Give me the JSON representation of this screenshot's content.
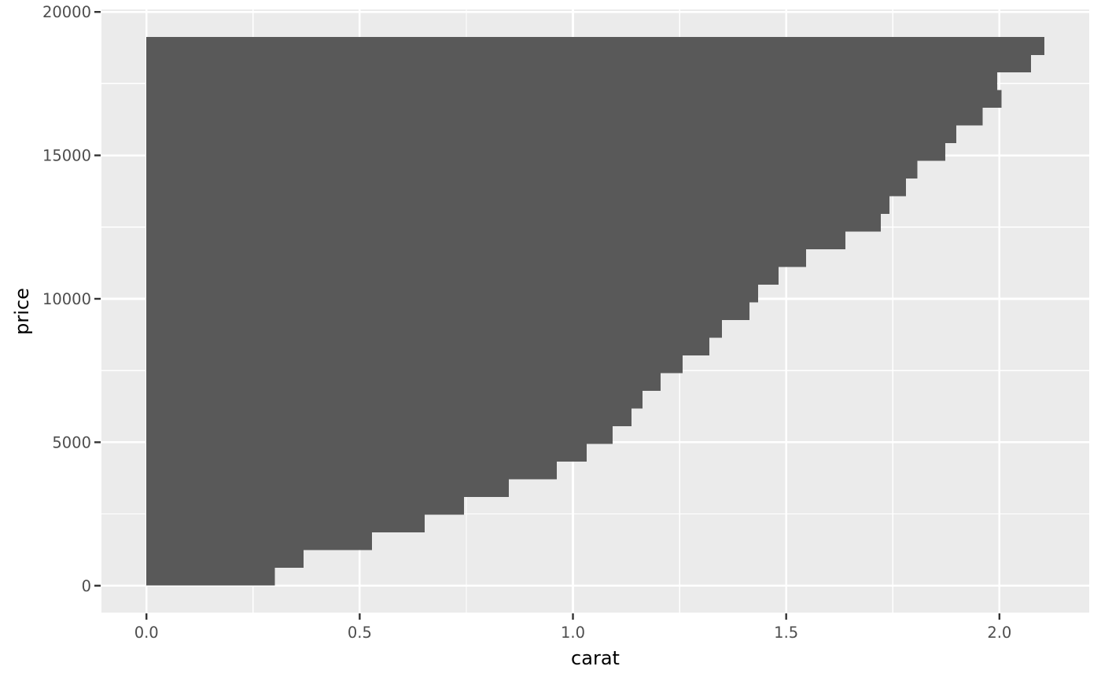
{
  "chart_data": {
    "type": "bar",
    "orientation": "horizontal",
    "title": "",
    "xlabel": "carat",
    "ylabel": "price",
    "xlim": [
      -0.1055,
      2.2105
    ],
    "ylim": [
      -938,
      20087
    ],
    "grid": "major-and-minor",
    "legend": "none",
    "x_ticks": {
      "values": [
        0.0,
        0.5,
        1.0,
        1.5,
        2.0
      ],
      "labels": [
        "0.0",
        "0.5",
        "1.0",
        "1.5",
        "2.0"
      ]
    },
    "y_ticks": {
      "values": [
        0,
        5000,
        10000,
        15000,
        20000
      ],
      "labels": [
        "0",
        "5000",
        "10000",
        "15000",
        "20000"
      ]
    },
    "x_minor": [
      0.25,
      0.75,
      1.25,
      1.75
    ],
    "y_minor": [
      2500,
      7500,
      12500,
      17500
    ],
    "price_bin_width": 616.57,
    "bars": [
      {
        "price": 326,
        "carat": 0.301
      },
      {
        "price": 943,
        "carat": 0.368
      },
      {
        "price": 1559,
        "carat": 0.529
      },
      {
        "price": 2176,
        "carat": 0.652
      },
      {
        "price": 2792,
        "carat": 0.745
      },
      {
        "price": 3409,
        "carat": 0.85
      },
      {
        "price": 4025,
        "carat": 0.962
      },
      {
        "price": 4642,
        "carat": 1.032
      },
      {
        "price": 5259,
        "carat": 1.093
      },
      {
        "price": 5875,
        "carat": 1.137
      },
      {
        "price": 6492,
        "carat": 1.163
      },
      {
        "price": 7108,
        "carat": 1.206
      },
      {
        "price": 7725,
        "carat": 1.257
      },
      {
        "price": 8341,
        "carat": 1.32
      },
      {
        "price": 8958,
        "carat": 1.349
      },
      {
        "price": 9575,
        "carat": 1.414
      },
      {
        "price": 10191,
        "carat": 1.434
      },
      {
        "price": 10808,
        "carat": 1.482
      },
      {
        "price": 11424,
        "carat": 1.547
      },
      {
        "price": 12041,
        "carat": 1.639
      },
      {
        "price": 12657,
        "carat": 1.722
      },
      {
        "price": 13274,
        "carat": 1.742
      },
      {
        "price": 13891,
        "carat": 1.781
      },
      {
        "price": 14507,
        "carat": 1.808
      },
      {
        "price": 15124,
        "carat": 1.873
      },
      {
        "price": 15740,
        "carat": 1.899
      },
      {
        "price": 16357,
        "carat": 1.961
      },
      {
        "price": 16973,
        "carat": 2.005
      },
      {
        "price": 17590,
        "carat": 1.995
      },
      {
        "price": 18207,
        "carat": 2.074
      },
      {
        "price": 18823,
        "carat": 2.105
      }
    ],
    "colors": {
      "bar": "#595959",
      "panel_bg": "#EBEBEB",
      "grid": "#FFFFFF",
      "tick_text": "#4D4D4D",
      "tick_mark": "#333333",
      "axis_title": "#000000",
      "page_bg": "#FFFFFF"
    }
  }
}
